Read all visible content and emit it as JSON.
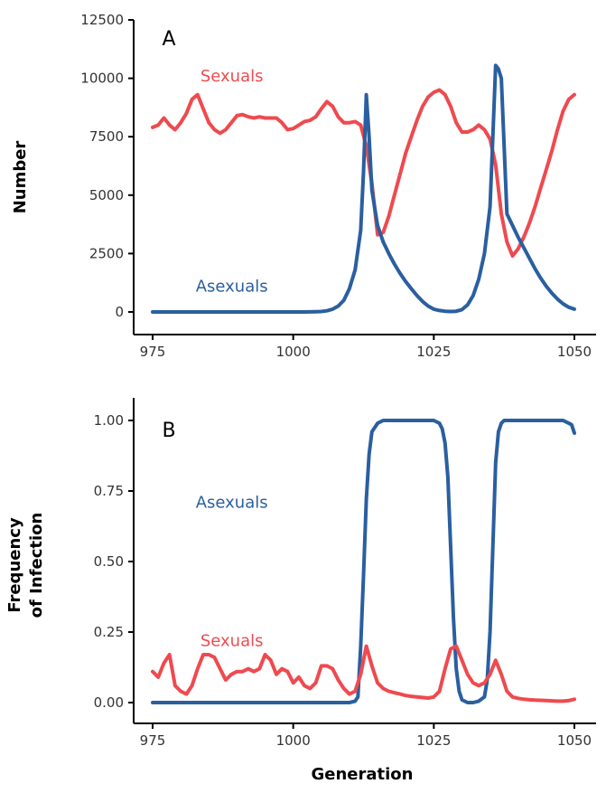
{
  "colors": {
    "sexuals": "#ee4a4f",
    "asexuals": "#2a5fa0",
    "axis": "#000000",
    "tick_text": "#333333"
  },
  "figure": {
    "xlabel": "Generation"
  },
  "chart_data": [
    {
      "type": "line",
      "panel": "A",
      "ylabel": "Number",
      "xlim": [
        975,
        1050
      ],
      "ylim": [
        0,
        12500
      ],
      "x_ticks": [
        975,
        1000,
        1025,
        1050
      ],
      "x_tick_labels": [
        "975",
        "1000",
        "1025",
        "1050"
      ],
      "y_ticks": [
        0,
        2500,
        5000,
        7500,
        10000,
        12500
      ],
      "y_tick_labels": [
        "0",
        "2500",
        "5000",
        "7500",
        "10000",
        "12500"
      ],
      "series": [
        {
          "name": "Sexuals",
          "label_at": [
            1000,
            10100
          ],
          "x": [
            975,
            976,
            977,
            978,
            979,
            980,
            981,
            982,
            983,
            984,
            985,
            986,
            987,
            988,
            989,
            990,
            991,
            992,
            993,
            994,
            995,
            996,
            997,
            998,
            999,
            1000,
            1001,
            1002,
            1003,
            1004,
            1005,
            1006,
            1007,
            1008,
            1009,
            1010,
            1011,
            1012,
            1013,
            1014,
            1015,
            1016,
            1017,
            1018,
            1019,
            1020,
            1021,
            1022,
            1023,
            1024,
            1025,
            1026,
            1027,
            1028,
            1029,
            1030,
            1031,
            1032,
            1033,
            1034,
            1035,
            1036,
            1037,
            1038,
            1039,
            1040,
            1041,
            1042,
            1043,
            1044,
            1045,
            1046,
            1047,
            1048,
            1049,
            1050
          ],
          "y": [
            7900,
            8000,
            8300,
            8000,
            7800,
            8100,
            8500,
            9100,
            9300,
            8700,
            8100,
            7800,
            7650,
            7800,
            8100,
            8400,
            8450,
            8350,
            8300,
            8350,
            8300,
            8300,
            8300,
            8100,
            7800,
            7850,
            8000,
            8150,
            8200,
            8350,
            8700,
            9000,
            8800,
            8350,
            8100,
            8100,
            8150,
            8000,
            7100,
            5500,
            3300,
            3400,
            4100,
            5000,
            5900,
            6800,
            7500,
            8200,
            8800,
            9200,
            9400,
            9500,
            9300,
            8800,
            8100,
            7700,
            7700,
            7800,
            8000,
            7800,
            7400,
            6300,
            4200,
            3000,
            2400,
            2700,
            3200,
            3800,
            4500,
            5300,
            6100,
            6900,
            7800,
            8600,
            9100,
            9300
          ]
        },
        {
          "name": "Asexuals",
          "label_at": [
            1000,
            1100
          ],
          "x": [
            975,
            980,
            985,
            990,
            995,
            1000,
            1002,
            1004,
            1005,
            1006,
            1007,
            1008,
            1009,
            1010,
            1011,
            1012,
            1012.5,
            1013,
            1013.5,
            1014,
            1015,
            1016,
            1017,
            1018,
            1019,
            1020,
            1021,
            1022,
            1023,
            1024,
            1025,
            1026,
            1027,
            1028,
            1029,
            1030,
            1031,
            1032,
            1033,
            1034,
            1035,
            1035.5,
            1036,
            1036.5,
            1037,
            1038,
            1039,
            1040,
            1041,
            1042,
            1043,
            1044,
            1045,
            1046,
            1047,
            1048,
            1049,
            1050
          ],
          "y": [
            0,
            0,
            0,
            0,
            0,
            0,
            0,
            10,
            20,
            50,
            120,
            250,
            500,
            1000,
            1800,
            3500,
            6000,
            9300,
            7500,
            5200,
            3700,
            3000,
            2500,
            2050,
            1650,
            1300,
            1000,
            700,
            450,
            250,
            120,
            60,
            30,
            20,
            30,
            100,
            300,
            700,
            1400,
            2500,
            4500,
            7500,
            10550,
            10400,
            10000,
            4200,
            3700,
            3200,
            2750,
            2300,
            1850,
            1450,
            1100,
            800,
            550,
            350,
            200,
            120
          ]
        }
      ]
    },
    {
      "type": "line",
      "panel": "B",
      "ylabel_lines": [
        "Frequency",
        "of Infection"
      ],
      "xlim": [
        975,
        1050
      ],
      "ylim": [
        0,
        1
      ],
      "x_ticks": [
        975,
        1000,
        1025,
        1050
      ],
      "x_tick_labels": [
        "975",
        "1000",
        "1025",
        "1050"
      ],
      "y_ticks": [
        0,
        0.25,
        0.5,
        0.75,
        1
      ],
      "y_tick_labels": [
        "0.00",
        "0.25",
        "0.50",
        "0.75",
        "1.00"
      ],
      "series": [
        {
          "name": "Asexuals",
          "label_at": [
            1000,
            0.71
          ],
          "x": [
            975,
            980,
            985,
            990,
            995,
            1000,
            1005,
            1010,
            1011,
            1011.5,
            1012,
            1012.5,
            1013,
            1013.5,
            1014,
            1015,
            1016,
            1018,
            1020,
            1022,
            1024,
            1025,
            1026,
            1026.5,
            1027,
            1027.5,
            1028,
            1028.5,
            1029,
            1029.5,
            1030,
            1031,
            1032,
            1033,
            1034,
            1034.5,
            1035,
            1035.5,
            1036,
            1036.5,
            1037,
            1037.5,
            1038,
            1040,
            1042,
            1044,
            1046,
            1047,
            1048,
            1049,
            1049.5,
            1050
          ],
          "y": [
            0,
            0,
            0,
            0,
            0,
            0,
            0,
            0,
            0.005,
            0.02,
            0.2,
            0.45,
            0.72,
            0.88,
            0.96,
            0.99,
            1,
            1,
            1,
            1,
            1,
            1,
            0.99,
            0.97,
            0.92,
            0.8,
            0.55,
            0.3,
            0.12,
            0.04,
            0.01,
            0,
            0,
            0.005,
            0.02,
            0.08,
            0.25,
            0.55,
            0.85,
            0.96,
            0.99,
            1,
            1,
            1,
            1,
            1,
            1,
            1,
            1,
            0.99,
            0.985,
            0.955
          ]
        },
        {
          "name": "Sexuals",
          "label_at": [
            1000,
            0.22
          ],
          "x": [
            975,
            976,
            977,
            978,
            979,
            980,
            981,
            982,
            983,
            984,
            985,
            986,
            987,
            988,
            989,
            990,
            991,
            992,
            993,
            994,
            995,
            996,
            997,
            998,
            999,
            1000,
            1001,
            1002,
            1003,
            1004,
            1005,
            1006,
            1007,
            1008,
            1009,
            1010,
            1011,
            1012,
            1013,
            1014,
            1015,
            1016,
            1017,
            1018,
            1019,
            1020,
            1021,
            1022,
            1023,
            1024,
            1025,
            1026,
            1027,
            1028,
            1029,
            1030,
            1031,
            1032,
            1033,
            1034,
            1035,
            1036,
            1037,
            1038,
            1039,
            1040,
            1041,
            1042,
            1043,
            1044,
            1045,
            1046,
            1047,
            1048,
            1049,
            1050
          ],
          "y": [
            0.11,
            0.09,
            0.14,
            0.17,
            0.06,
            0.04,
            0.03,
            0.06,
            0.12,
            0.17,
            0.17,
            0.16,
            0.12,
            0.08,
            0.1,
            0.11,
            0.11,
            0.12,
            0.11,
            0.12,
            0.17,
            0.15,
            0.1,
            0.12,
            0.11,
            0.07,
            0.09,
            0.06,
            0.05,
            0.07,
            0.13,
            0.13,
            0.12,
            0.08,
            0.05,
            0.03,
            0.04,
            0.1,
            0.2,
            0.13,
            0.07,
            0.05,
            0.04,
            0.035,
            0.03,
            0.025,
            0.022,
            0.02,
            0.018,
            0.016,
            0.02,
            0.04,
            0.12,
            0.19,
            0.2,
            0.15,
            0.1,
            0.07,
            0.06,
            0.07,
            0.1,
            0.15,
            0.1,
            0.04,
            0.02,
            0.015,
            0.012,
            0.01,
            0.009,
            0.008,
            0.007,
            0.006,
            0.005,
            0.005,
            0.007,
            0.012
          ]
        }
      ]
    }
  ]
}
